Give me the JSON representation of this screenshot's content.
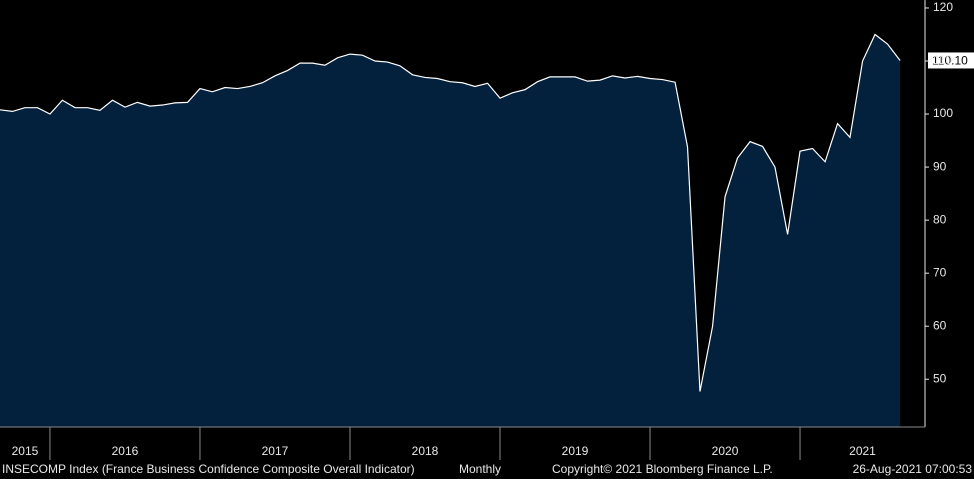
{
  "chart_data": {
    "type": "area",
    "source": "INSECOMP Index (France Business Confidence Composite Overall Indicator)",
    "frequency": "Monthly",
    "copyright": "Copyright© 2021 Bloomberg Finance L.P.",
    "timestamp": "26-Aug-2021 07:00:53",
    "last_value_label": "110.10",
    "xlim": [
      2015.667,
      2021.833
    ],
    "xticks": [
      2015,
      2016,
      2017,
      2018,
      2019,
      2020,
      2021
    ],
    "ylim": [
      41,
      121.5
    ],
    "yticks": [
      50,
      60,
      70,
      80,
      90,
      100,
      110,
      120
    ],
    "series": [
      {
        "color": "#ffffff",
        "fill": "#03203d",
        "x": [
          2015.667,
          2015.75,
          2015.833,
          2015.917,
          2016,
          2016.083,
          2016.167,
          2016.25,
          2016.333,
          2016.417,
          2016.5,
          2016.583,
          2016.667,
          2016.75,
          2016.833,
          2016.917,
          2017,
          2017.083,
          2017.167,
          2017.25,
          2017.333,
          2017.417,
          2017.5,
          2017.583,
          2017.667,
          2017.75,
          2017.833,
          2017.917,
          2018,
          2018.083,
          2018.167,
          2018.25,
          2018.333,
          2018.417,
          2018.5,
          2018.583,
          2018.667,
          2018.75,
          2018.833,
          2018.917,
          2019,
          2019.083,
          2019.167,
          2019.25,
          2019.333,
          2019.417,
          2019.5,
          2019.583,
          2019.667,
          2019.75,
          2019.833,
          2019.917,
          2020,
          2020.083,
          2020.167,
          2020.25,
          2020.333,
          2020.417,
          2020.5,
          2020.583,
          2020.667,
          2020.75,
          2020.833,
          2020.917,
          2021,
          2021.083,
          2021.167,
          2021.25,
          2021.333,
          2021.417,
          2021.5,
          2021.583,
          2021.667
        ],
        "values": [
          100.8,
          100.5,
          101.2,
          101.2,
          100.0,
          102.6,
          101.2,
          101.2,
          100.7,
          102.6,
          101.3,
          102.2,
          101.5,
          101.7,
          102.1,
          102.2,
          104.8,
          104.2,
          105.0,
          104.8,
          105.2,
          105.9,
          107.2,
          108.2,
          109.6,
          109.6,
          109.2,
          110.6,
          111.3,
          111.1,
          110.0,
          109.8,
          109.1,
          107.4,
          106.9,
          106.7,
          106.1,
          105.9,
          105.2,
          105.8,
          103.0,
          104.0,
          104.6,
          106.1,
          107.0,
          107.0,
          107.0,
          106.2,
          106.4,
          107.2,
          106.8,
          107.1,
          106.7,
          106.5,
          106.0,
          93.8,
          47.7,
          60.0,
          84.4,
          91.7,
          94.8,
          93.9,
          90.0,
          77.3,
          93.0,
          93.5,
          91.0,
          98.2,
          95.6,
          110.0,
          115.0,
          113.2,
          110.1
        ]
      }
    ]
  }
}
